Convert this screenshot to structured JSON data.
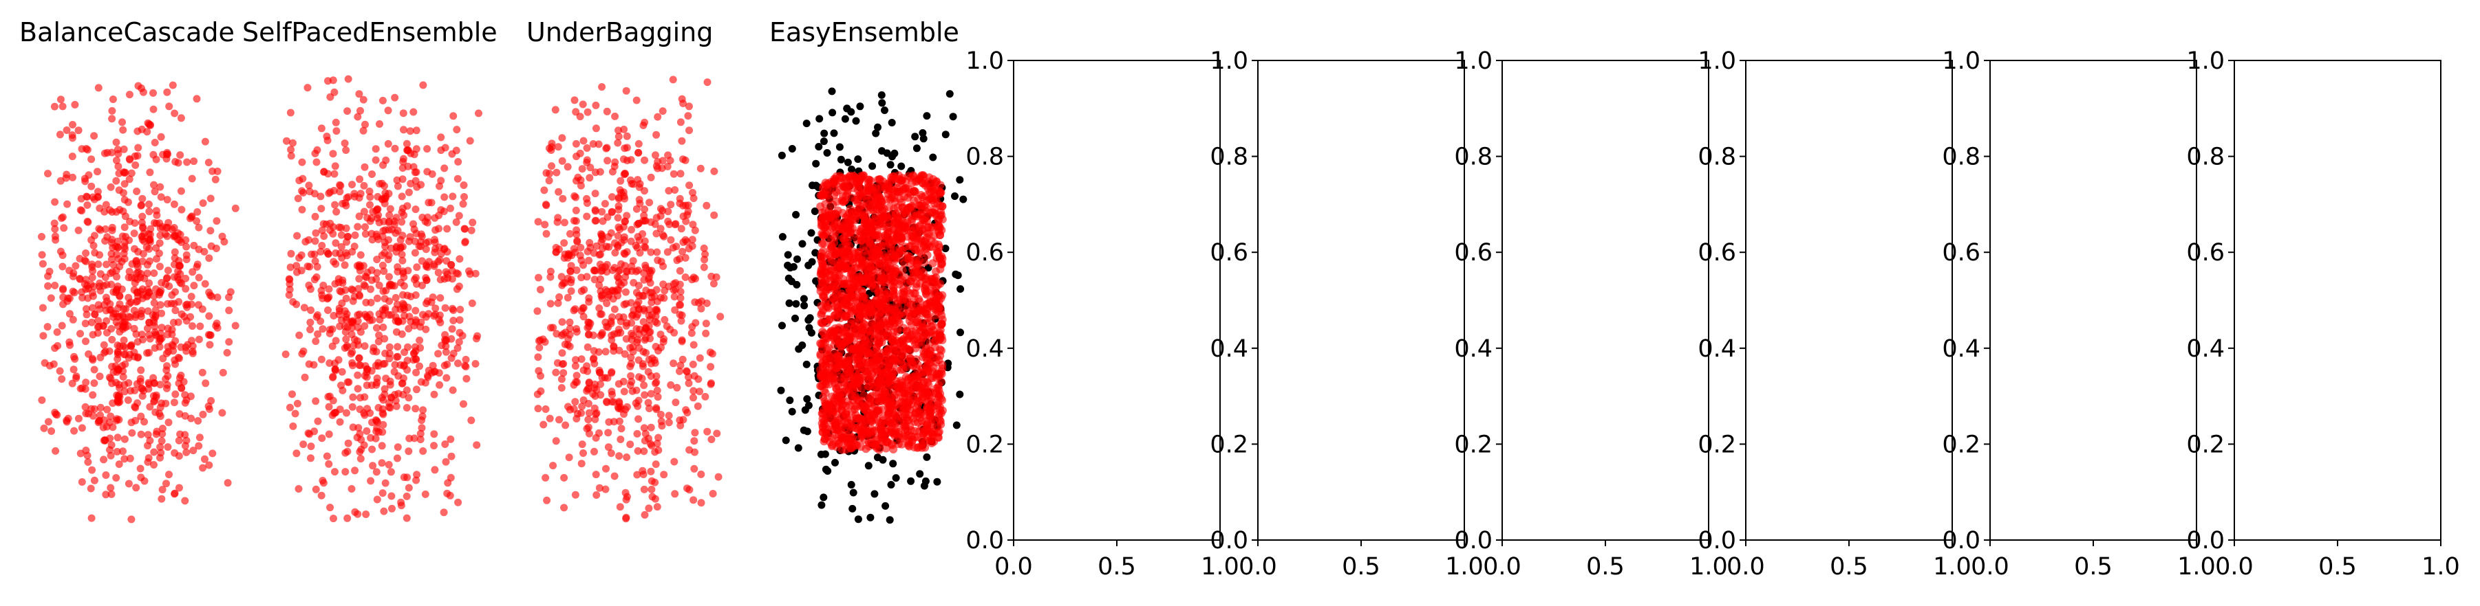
{
  "chart_data": [
    {
      "type": "scatter",
      "title": "BalanceCascade",
      "axes_visible": false,
      "series": [
        {
          "name": "",
          "color": "#ff0000",
          "alpha": 0.6,
          "points": "dense_blob_narrow_top"
        }
      ]
    },
    {
      "type": "scatter",
      "title": "SelfPacedEnsemble",
      "axes_visible": false,
      "series": [
        {
          "name": "",
          "color": "#ff0000",
          "alpha": 0.6,
          "points": "dense_blob"
        }
      ]
    },
    {
      "type": "scatter",
      "title": "UnderBagging",
      "axes_visible": false,
      "series": [
        {
          "name": "",
          "color": "#ff0000",
          "alpha": 0.6,
          "points": "dense_blob"
        }
      ]
    },
    {
      "type": "scatter",
      "title": "EasyEnsemble",
      "axes_visible": false,
      "series": [
        {
          "name": "",
          "color": "#000000",
          "alpha": 1.0,
          "points": "outer_ring"
        },
        {
          "name": "",
          "color": "#ff0000",
          "alpha": 0.6,
          "points": "dense_rectangle"
        }
      ]
    },
    {
      "type": "scatter",
      "title": "",
      "axes_visible": true,
      "xlim": [
        0.0,
        1.0
      ],
      "ylim": [
        0.0,
        1.0
      ],
      "xticks": [
        "0.0",
        "0.5",
        "1.0"
      ],
      "yticks": [
        "0.0",
        "0.2",
        "0.4",
        "0.6",
        "0.8",
        "1.0"
      ],
      "series": []
    },
    {
      "type": "scatter",
      "title": "",
      "axes_visible": true,
      "xlim": [
        0.0,
        1.0
      ],
      "ylim": [
        0.0,
        1.0
      ],
      "xticks": [
        "0.0",
        "0.5",
        "1.0"
      ],
      "yticks": [
        "0.0",
        "0.2",
        "0.4",
        "0.6",
        "0.8",
        "1.0"
      ],
      "series": []
    },
    {
      "type": "scatter",
      "title": "",
      "axes_visible": true,
      "xlim": [
        0.0,
        1.0
      ],
      "ylim": [
        0.0,
        1.0
      ],
      "xticks": [
        "0.0",
        "0.5",
        "1.0"
      ],
      "yticks": [
        "0.0",
        "0.2",
        "0.4",
        "0.6",
        "0.8",
        "1.0"
      ],
      "series": []
    },
    {
      "type": "scatter",
      "title": "",
      "axes_visible": true,
      "xlim": [
        0.0,
        1.0
      ],
      "ylim": [
        0.0,
        1.0
      ],
      "xticks": [
        "0.0",
        "0.5",
        "1.0"
      ],
      "yticks": [
        "0.0",
        "0.2",
        "0.4",
        "0.6",
        "0.8",
        "1.0"
      ],
      "series": []
    },
    {
      "type": "scatter",
      "title": "",
      "axes_visible": true,
      "xlim": [
        0.0,
        1.0
      ],
      "ylim": [
        0.0,
        1.0
      ],
      "xticks": [
        "0.0",
        "0.5",
        "1.0"
      ],
      "yticks": [
        "0.0",
        "0.2",
        "0.4",
        "0.6",
        "0.8",
        "1.0"
      ],
      "series": []
    },
    {
      "type": "scatter",
      "title": "",
      "axes_visible": true,
      "xlim": [
        0.0,
        1.0
      ],
      "ylim": [
        0.0,
        1.0
      ],
      "xticks": [
        "0.0",
        "0.5",
        "1.0"
      ],
      "yticks": [
        "0.0",
        "0.2",
        "0.4",
        "0.6",
        "0.8",
        "1.0"
      ],
      "series": []
    }
  ]
}
